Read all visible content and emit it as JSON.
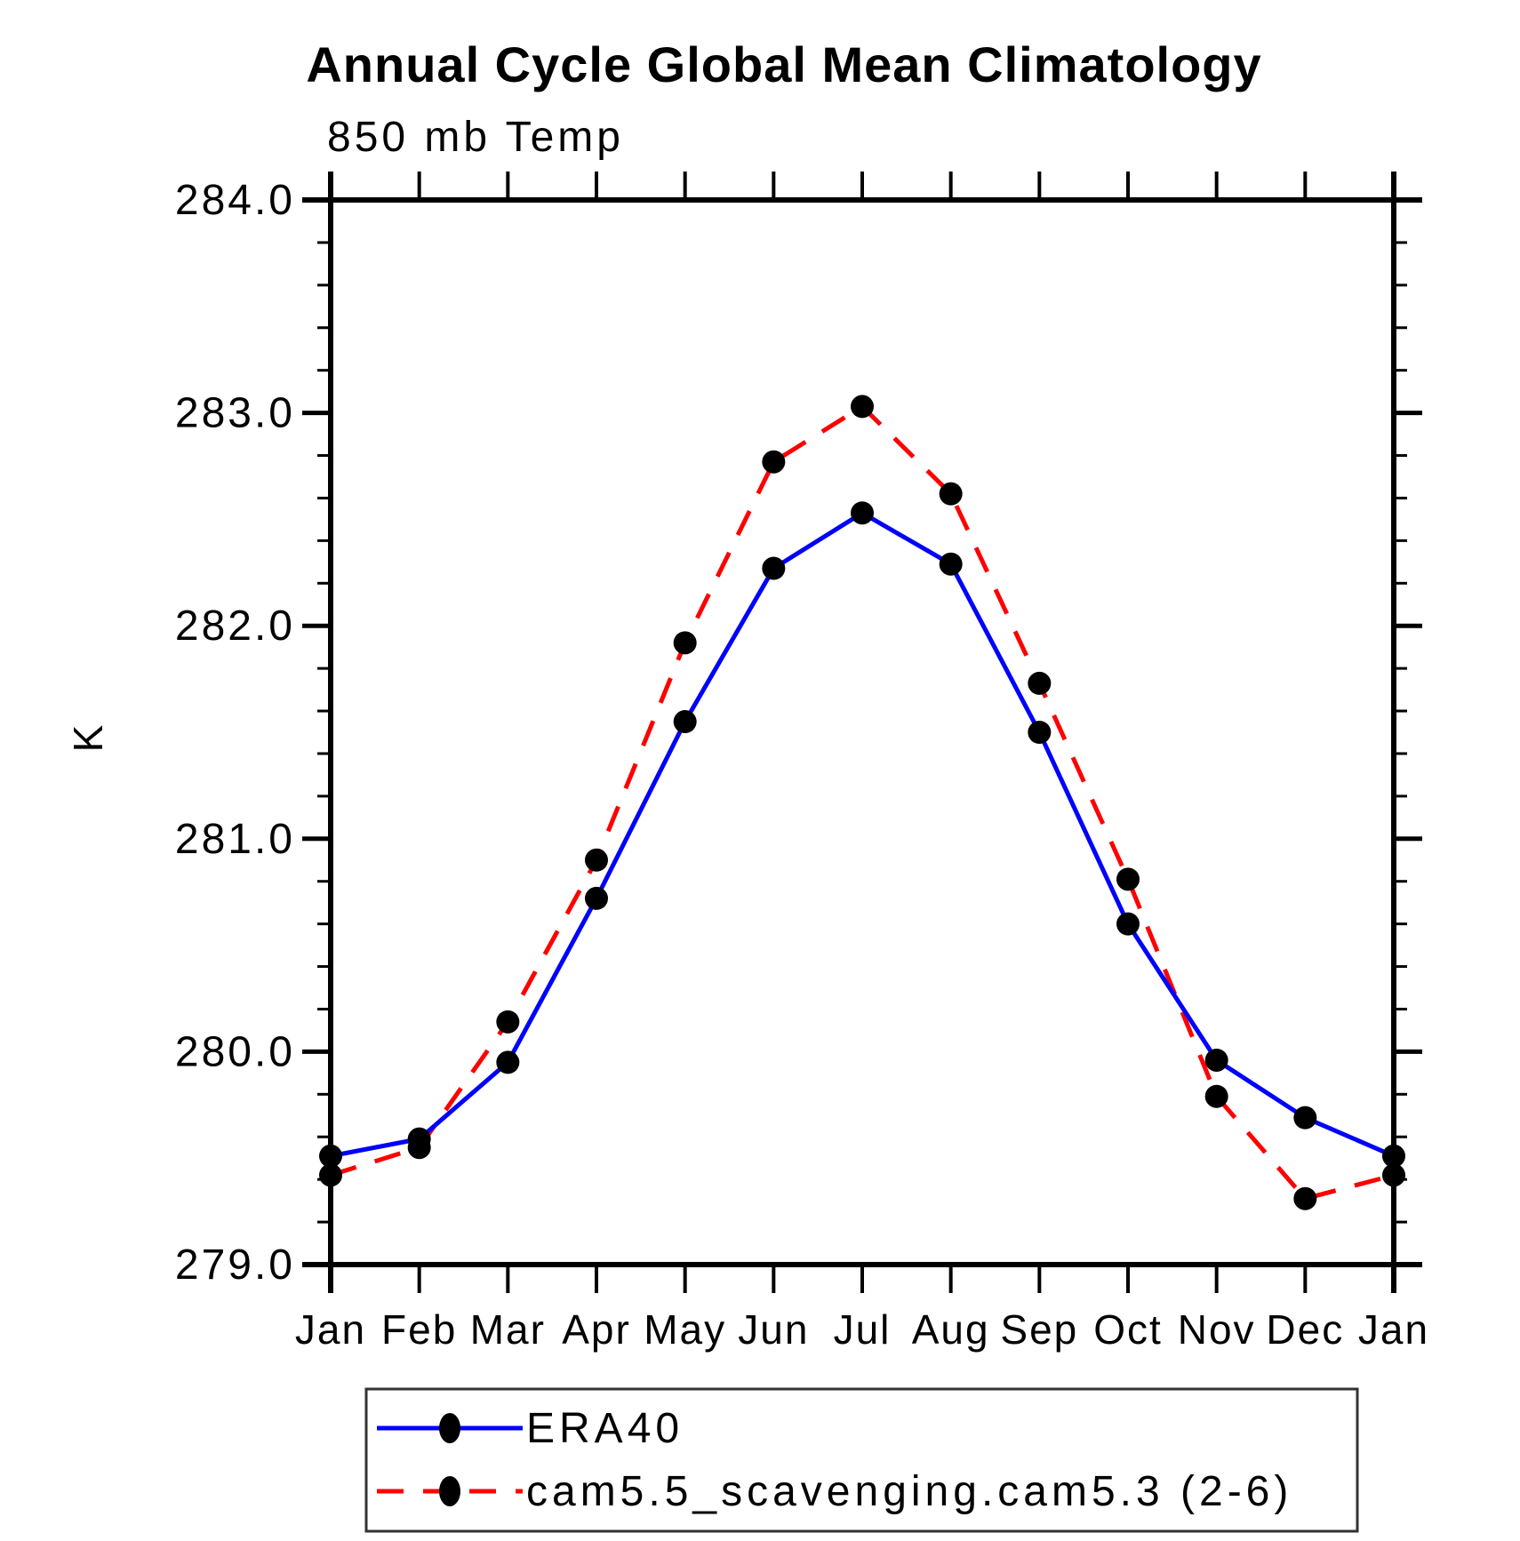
{
  "title": "Annual Cycle Global Mean Climatology",
  "subtitle": "850 mb Temp",
  "ylabel": "K",
  "colors": {
    "era40_line": "#0000ff",
    "cam_line": "#ff0000",
    "marker": "#000000",
    "axis": "#000000",
    "legend_border": "#333333"
  },
  "chart_data": {
    "type": "line",
    "categories": [
      "Jan",
      "Feb",
      "Mar",
      "Apr",
      "May",
      "Jun",
      "Jul",
      "Aug",
      "Sep",
      "Oct",
      "Nov",
      "Dec",
      "Jan"
    ],
    "series": [
      {
        "name": "ERA40",
        "color": "#0000ff",
        "style": "solid",
        "marker": "filled-circle",
        "values": [
          279.51,
          279.59,
          279.95,
          280.72,
          281.55,
          282.27,
          282.53,
          282.29,
          281.5,
          280.6,
          279.96,
          279.69,
          279.51
        ]
      },
      {
        "name": "cam5.5_scavenging.cam5.3 (2-6)",
        "color": "#ff0000",
        "style": "dashed",
        "marker": "filled-circle",
        "values": [
          279.42,
          279.55,
          280.14,
          280.9,
          281.92,
          282.77,
          283.03,
          282.62,
          281.73,
          280.81,
          279.79,
          279.31,
          279.42
        ]
      }
    ],
    "ylim": [
      279.0,
      284.0
    ],
    "yticks": [
      279.0,
      280.0,
      281.0,
      282.0,
      283.0,
      284.0
    ],
    "ytick_labels": [
      "279.0",
      "280.0",
      "281.0",
      "282.0",
      "283.0",
      "284.0"
    ],
    "yminor_interval": 0.2,
    "grid": "off",
    "legend_position": "bottom"
  }
}
